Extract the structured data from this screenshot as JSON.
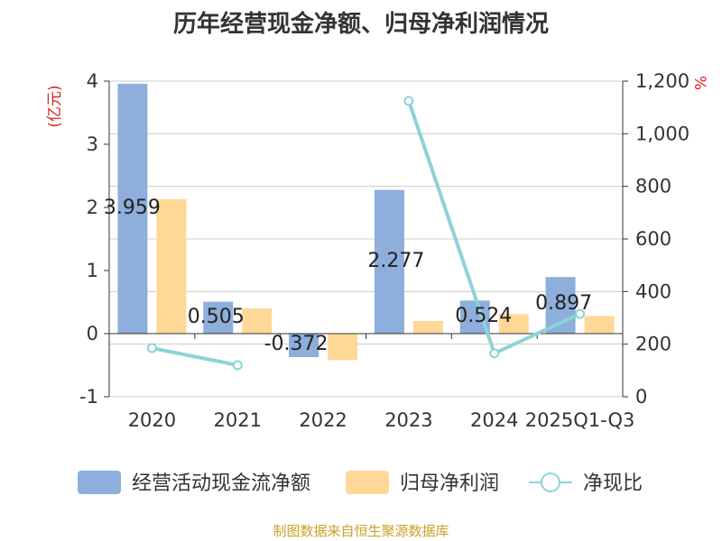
{
  "title": "历年经营现金净额、归母净利润情况",
  "source": "制图数据来自恒生聚源数据库",
  "chart_data": {
    "type": "bar",
    "categories": [
      "2020",
      "2021",
      "2022",
      "2023",
      "2024",
      "2025Q1-Q3"
    ],
    "ylabel_left": "(亿元)",
    "ylabel_right": "%",
    "ylim_left": [
      -1,
      4
    ],
    "ylim_right": [
      0,
      1200
    ],
    "yticks_left": [
      "4",
      "3",
      "2",
      "1",
      "0",
      "-1"
    ],
    "yticks_right": [
      "1,200",
      "1,000",
      "800",
      "600",
      "400",
      "200",
      "0"
    ],
    "grid": true,
    "legend_position": "bottom",
    "series": [
      {
        "name": "经营活动现金流净额",
        "type": "bar",
        "axis": "left",
        "color": "#8eaedb",
        "values": [
          3.959,
          0.505,
          -0.372,
          2.277,
          0.524,
          0.897
        ],
        "labels": [
          "3.959",
          "0.505",
          "-0.372",
          "2.277",
          "0.524",
          "0.897"
        ]
      },
      {
        "name": "归母净利润",
        "type": "bar",
        "axis": "right_bar",
        "color": "#ffd898",
        "values": [
          2.13,
          0.4,
          -0.42,
          0.2,
          0.31,
          0.28
        ]
      },
      {
        "name": "净现比",
        "type": "line",
        "axis": "right",
        "color": "#8cd3d8",
        "segments": [
          [
            [
              0,
              185
            ],
            [
              1,
              120
            ]
          ],
          [
            [
              3,
              1125
            ],
            [
              4,
              165
            ],
            [
              5,
              315
            ]
          ]
        ]
      }
    ]
  }
}
